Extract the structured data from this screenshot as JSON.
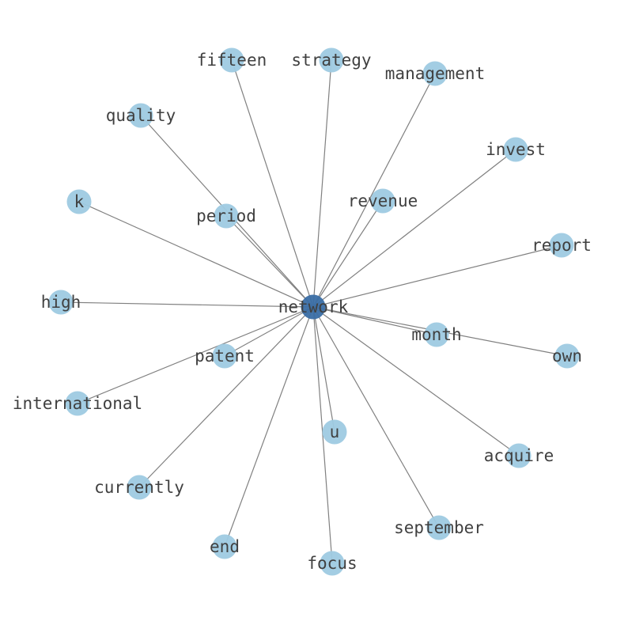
{
  "center": "network",
  "nodes": [
    "network",
    "fifteen",
    "strategy",
    "management",
    "quality",
    "invest",
    "k",
    "period",
    "revenue",
    "report",
    "high",
    "month",
    "own",
    "patent",
    "international",
    "u",
    "acquire",
    "currently",
    "september",
    "end",
    "focus"
  ],
  "edges": [
    [
      "network",
      "fifteen"
    ],
    [
      "network",
      "strategy"
    ],
    [
      "network",
      "management"
    ],
    [
      "network",
      "quality"
    ],
    [
      "network",
      "invest"
    ],
    [
      "network",
      "k"
    ],
    [
      "network",
      "period"
    ],
    [
      "network",
      "revenue"
    ],
    [
      "network",
      "report"
    ],
    [
      "network",
      "high"
    ],
    [
      "network",
      "month"
    ],
    [
      "network",
      "own"
    ],
    [
      "network",
      "patent"
    ],
    [
      "network",
      "international"
    ],
    [
      "network",
      "u"
    ],
    [
      "network",
      "acquire"
    ],
    [
      "network",
      "currently"
    ],
    [
      "network",
      "september"
    ],
    [
      "network",
      "end"
    ],
    [
      "network",
      "focus"
    ]
  ],
  "colors": {
    "center_node": "#3a6ea5",
    "leaf_node": "#9ecae1",
    "edge": "#808080",
    "label": "#404040"
  }
}
